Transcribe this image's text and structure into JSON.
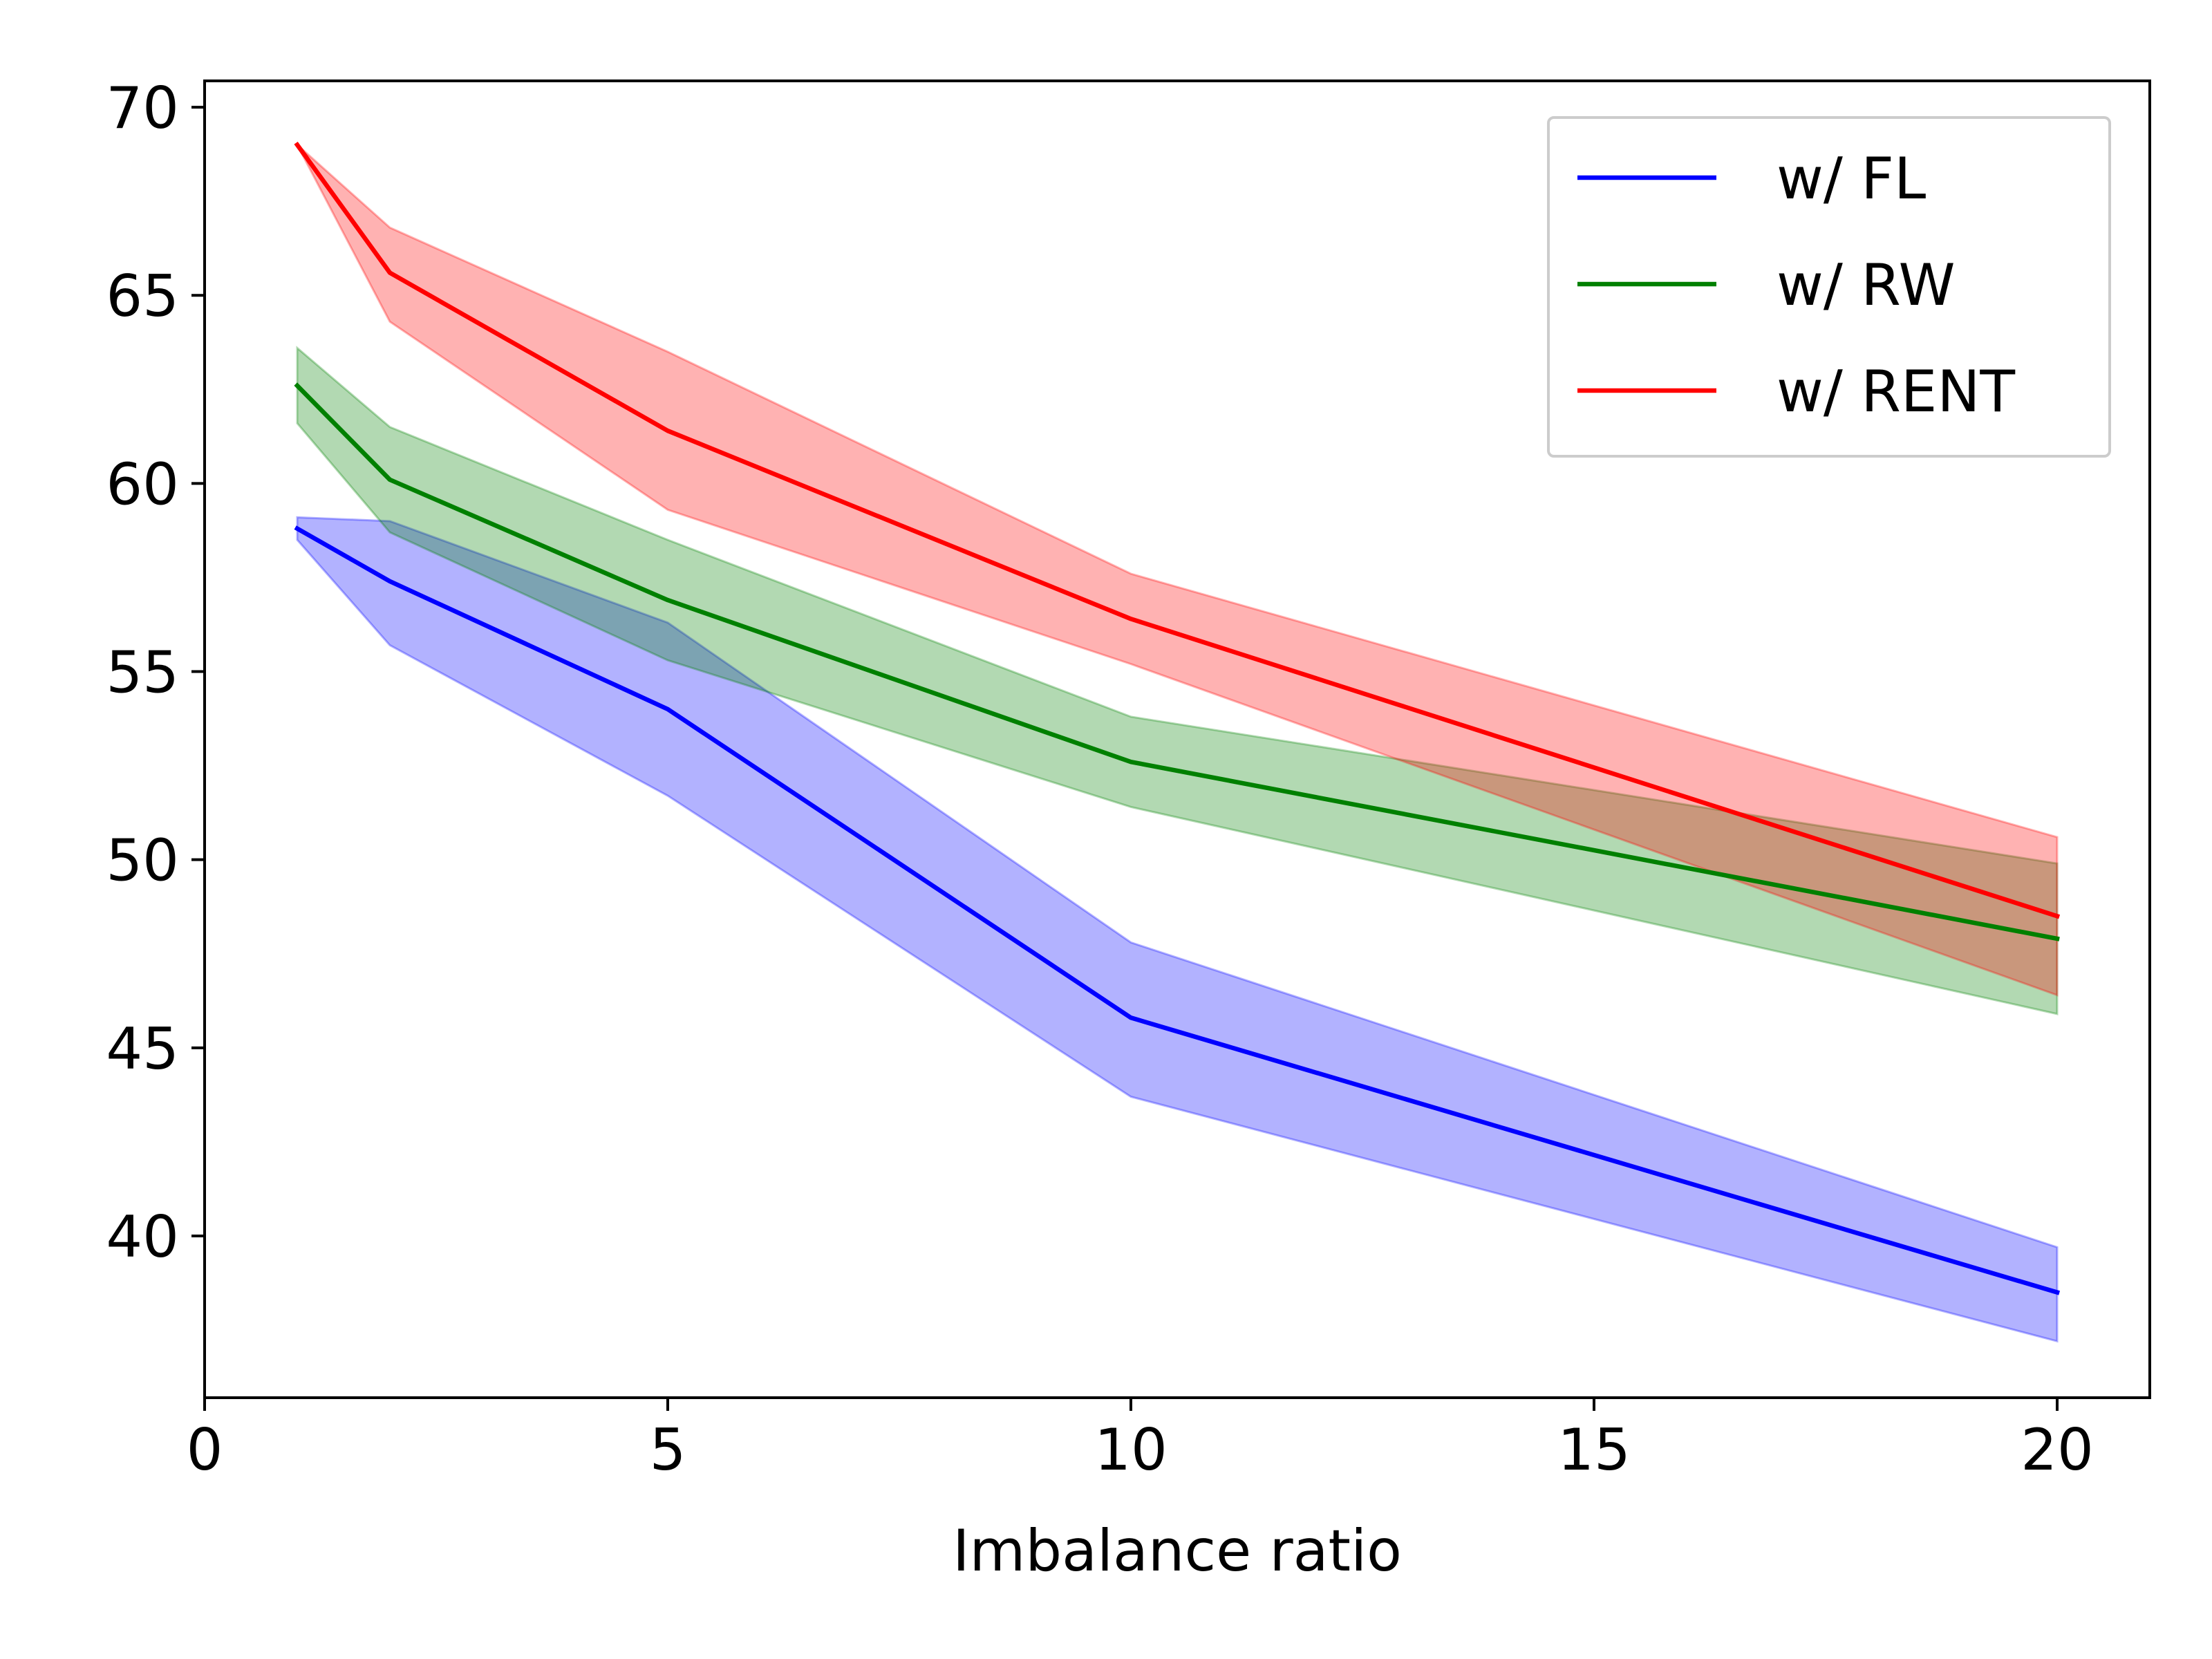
{
  "chart_data": {
    "type": "line",
    "title": "",
    "xlabel": "Imbalance ratio",
    "ylabel": "",
    "xlim": [
      0,
      21
    ],
    "ylim": [
      35.7,
      70.7
    ],
    "xticks": [
      0,
      5,
      10,
      15,
      20
    ],
    "yticks": [
      40,
      45,
      50,
      55,
      60,
      65,
      70
    ],
    "x": [
      1,
      2,
      5,
      10,
      20
    ],
    "grid": false,
    "legend_position": "top-right",
    "series": [
      {
        "name": "w/ FL",
        "color": "#0000ff",
        "values": [
          58.8,
          57.4,
          54.0,
          45.8,
          38.5
        ],
        "lower": [
          58.5,
          55.7,
          51.7,
          43.7,
          37.2
        ],
        "upper": [
          59.1,
          59.0,
          56.3,
          47.8,
          39.7
        ]
      },
      {
        "name": "w/ RW",
        "color": "#008000",
        "values": [
          62.6,
          60.1,
          56.9,
          52.6,
          47.9
        ],
        "lower": [
          61.6,
          58.7,
          55.3,
          51.4,
          45.9
        ],
        "upper": [
          63.6,
          61.5,
          58.5,
          53.8,
          49.9
        ]
      },
      {
        "name": "w/ RENT",
        "color": "#ff0000",
        "values": [
          69.0,
          65.6,
          61.4,
          56.4,
          48.5
        ],
        "lower": [
          69.0,
          64.3,
          59.3,
          55.2,
          46.4
        ],
        "upper": [
          69.0,
          66.8,
          63.5,
          57.6,
          50.6
        ]
      }
    ]
  }
}
